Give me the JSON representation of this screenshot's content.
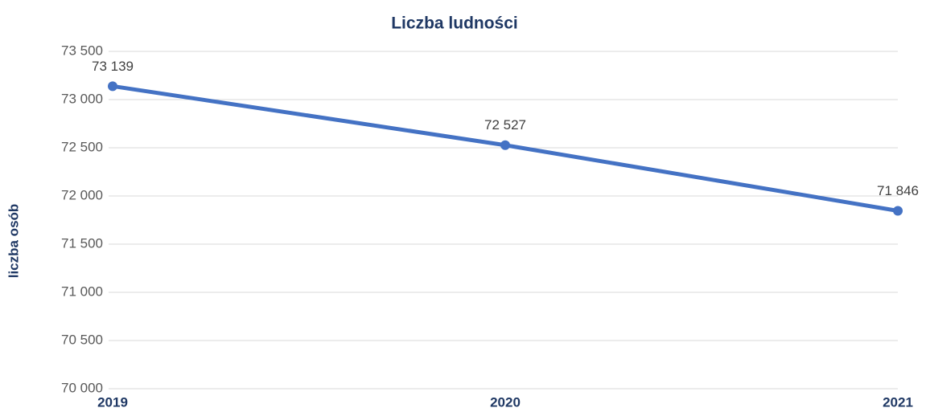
{
  "chart_data": {
    "type": "line",
    "title": "Liczba ludności",
    "y_label": "liczba osób",
    "categories": [
      "2019",
      "2020",
      "2021"
    ],
    "values": [
      73139,
      72527,
      71846
    ],
    "value_labels": [
      "73 139",
      "72 527",
      "71 846"
    ],
    "color": "#4472c4",
    "ylim": [
      70000,
      73500
    ],
    "yticks": [
      {
        "value": 70000,
        "label": "70 000"
      },
      {
        "value": 70500,
        "label": "70 500"
      },
      {
        "value": 71000,
        "label": "71 000"
      },
      {
        "value": 71500,
        "label": "71 500"
      },
      {
        "value": 72000,
        "label": "72 000"
      },
      {
        "value": 72500,
        "label": "72 500"
      },
      {
        "value": 73000,
        "label": "73 000"
      },
      {
        "value": 73500,
        "label": "73 500"
      }
    ],
    "grid": true
  }
}
